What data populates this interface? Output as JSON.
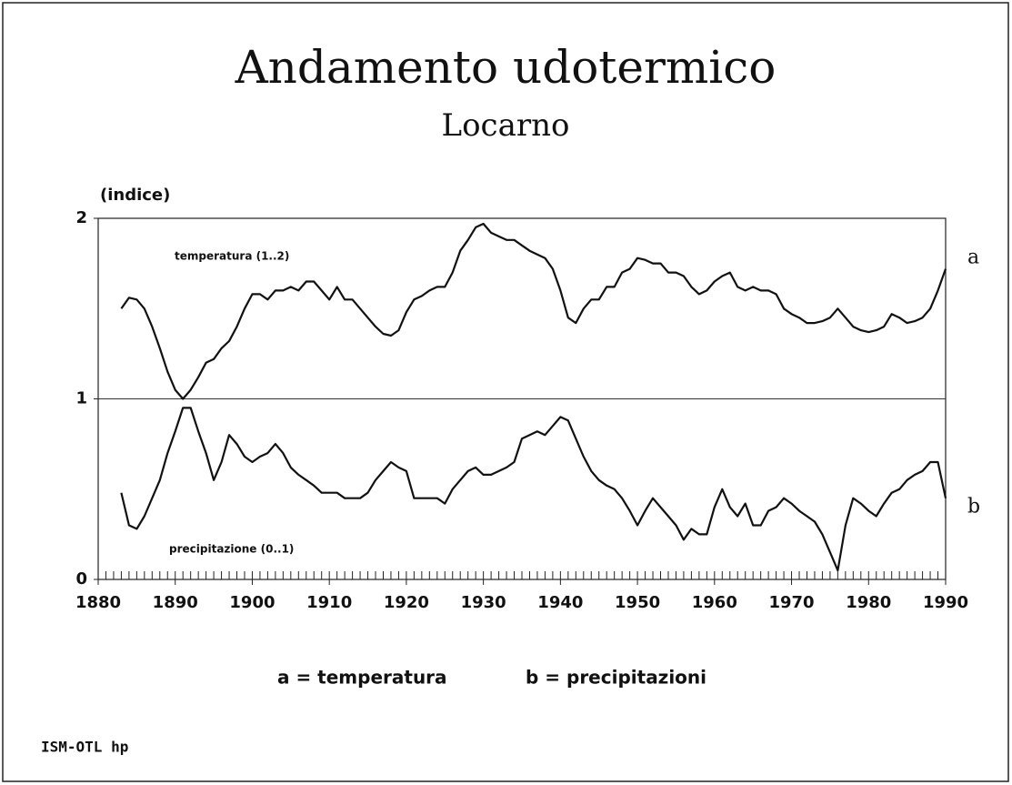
{
  "chart_data": {
    "type": "line",
    "title": "Andamento udotermico",
    "subtitle": "Locarno",
    "y_label": "(indice)",
    "annotations": [
      "temperatura (1..2)",
      "precipitazione (0..1)"
    ],
    "legend": [
      "a = temperatura",
      "b = precipitazioni"
    ],
    "footer": "ISM-OTL hp",
    "x": [
      1883,
      1884,
      1885,
      1886,
      1887,
      1888,
      1889,
      1890,
      1891,
      1892,
      1893,
      1894,
      1895,
      1896,
      1897,
      1898,
      1899,
      1900,
      1901,
      1902,
      1903,
      1904,
      1905,
      1906,
      1907,
      1908,
      1909,
      1910,
      1911,
      1912,
      1913,
      1914,
      1915,
      1916,
      1917,
      1918,
      1919,
      1920,
      1921,
      1922,
      1923,
      1924,
      1925,
      1926,
      1927,
      1928,
      1929,
      1930,
      1931,
      1932,
      1933,
      1934,
      1935,
      1936,
      1937,
      1938,
      1939,
      1940,
      1941,
      1942,
      1943,
      1944,
      1945,
      1946,
      1947,
      1948,
      1949,
      1950,
      1951,
      1952,
      1953,
      1954,
      1955,
      1956,
      1957,
      1958,
      1959,
      1960,
      1961,
      1962,
      1963,
      1964,
      1965,
      1966,
      1967,
      1968,
      1969,
      1970,
      1971,
      1972,
      1973,
      1974,
      1975,
      1976,
      1977,
      1978,
      1979,
      1980,
      1981,
      1982,
      1983,
      1984,
      1985,
      1986,
      1987,
      1988,
      1989,
      1990
    ],
    "series": [
      {
        "name": "a",
        "color": "#111111",
        "values": [
          1.5,
          1.56,
          1.55,
          1.5,
          1.4,
          1.28,
          1.15,
          1.05,
          1.0,
          1.05,
          1.12,
          1.2,
          1.22,
          1.28,
          1.32,
          1.4,
          1.5,
          1.58,
          1.58,
          1.55,
          1.6,
          1.6,
          1.62,
          1.6,
          1.65,
          1.65,
          1.6,
          1.55,
          1.62,
          1.55,
          1.55,
          1.5,
          1.45,
          1.4,
          1.36,
          1.35,
          1.38,
          1.48,
          1.55,
          1.57,
          1.6,
          1.62,
          1.62,
          1.7,
          1.82,
          1.88,
          1.95,
          1.97,
          1.92,
          1.9,
          1.88,
          1.88,
          1.85,
          1.82,
          1.8,
          1.78,
          1.72,
          1.6,
          1.45,
          1.42,
          1.5,
          1.55,
          1.55,
          1.62,
          1.62,
          1.7,
          1.72,
          1.78,
          1.77,
          1.75,
          1.75,
          1.7,
          1.7,
          1.68,
          1.62,
          1.58,
          1.6,
          1.65,
          1.68,
          1.7,
          1.62,
          1.6,
          1.62,
          1.6,
          1.6,
          1.58,
          1.5,
          1.47,
          1.45,
          1.42,
          1.42,
          1.43,
          1.45,
          1.5,
          1.45,
          1.4,
          1.38,
          1.37,
          1.38,
          1.4,
          1.47,
          1.45,
          1.42,
          1.43,
          1.45,
          1.5,
          1.6,
          1.72
        ]
      },
      {
        "name": "b",
        "color": "#111111",
        "values": [
          0.48,
          0.3,
          0.28,
          0.35,
          0.45,
          0.55,
          0.7,
          0.82,
          0.95,
          0.95,
          0.82,
          0.7,
          0.55,
          0.65,
          0.8,
          0.75,
          0.68,
          0.65,
          0.68,
          0.7,
          0.75,
          0.7,
          0.62,
          0.58,
          0.55,
          0.52,
          0.48,
          0.48,
          0.48,
          0.45,
          0.45,
          0.45,
          0.48,
          0.55,
          0.6,
          0.65,
          0.62,
          0.6,
          0.45,
          0.45,
          0.45,
          0.45,
          0.42,
          0.5,
          0.55,
          0.6,
          0.62,
          0.58,
          0.58,
          0.6,
          0.62,
          0.65,
          0.78,
          0.8,
          0.82,
          0.8,
          0.85,
          0.9,
          0.88,
          0.78,
          0.68,
          0.6,
          0.55,
          0.52,
          0.5,
          0.45,
          0.38,
          0.3,
          0.38,
          0.45,
          0.4,
          0.35,
          0.3,
          0.22,
          0.28,
          0.25,
          0.25,
          0.4,
          0.5,
          0.4,
          0.35,
          0.42,
          0.3,
          0.3,
          0.38,
          0.4,
          0.45,
          0.42,
          0.38,
          0.35,
          0.32,
          0.25,
          0.15,
          0.05,
          0.3,
          0.45,
          0.42,
          0.38,
          0.35,
          0.42,
          0.48,
          0.5,
          0.55,
          0.58,
          0.6,
          0.65,
          0.65,
          0.45
        ]
      }
    ],
    "xlim": [
      1880,
      1990
    ],
    "xticks": [
      1880,
      1890,
      1900,
      1910,
      1920,
      1930,
      1940,
      1950,
      1960,
      1970,
      1980,
      1990
    ],
    "ylim": [
      0,
      2
    ],
    "yticks": [
      0,
      1,
      2
    ],
    "reference_line": 1,
    "xminor_ticks": true,
    "grid": false
  }
}
